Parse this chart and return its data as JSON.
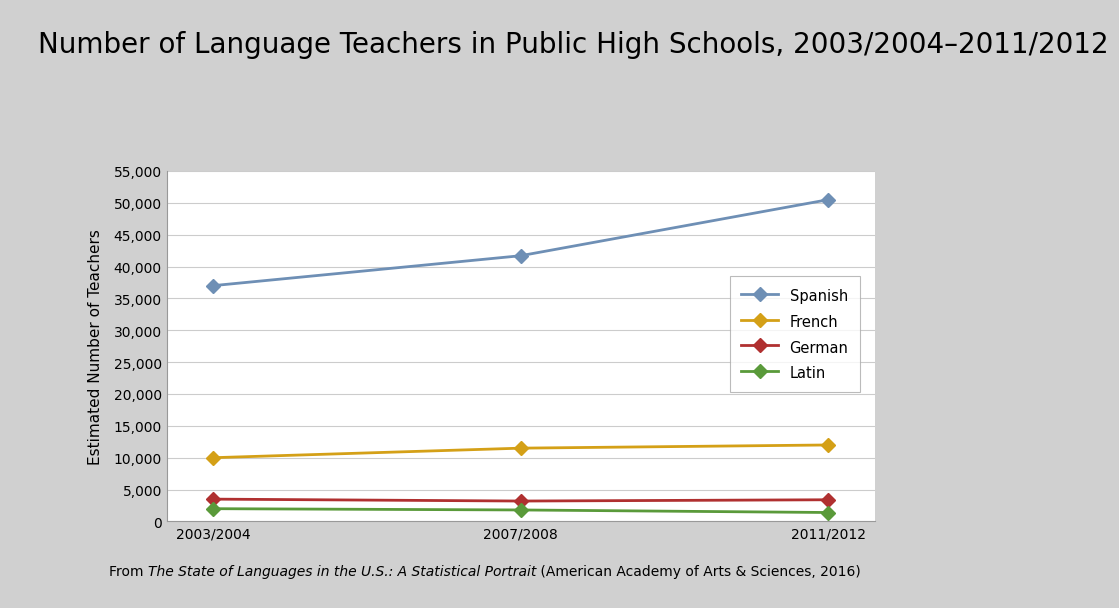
{
  "title": "Number of Language Teachers in Public High Schools, 2003/2004–2011/2012",
  "title_fontsize": 20,
  "ylabel": "Estimated Number of Teachers",
  "ylabel_fontsize": 11,
  "background_color": "#d0d0d0",
  "plot_bg_color": "#ffffff",
  "x_labels": [
    "2003/2004",
    "2007/2008",
    "2011/2012"
  ],
  "x_values": [
    0,
    1,
    2
  ],
  "series": [
    {
      "label": "Spanish",
      "color": "#6e8fb5",
      "marker": "D",
      "values": [
        37000,
        41700,
        50500
      ]
    },
    {
      "label": "French",
      "color": "#d4a017",
      "marker": "D",
      "values": [
        10000,
        11500,
        12000
      ]
    },
    {
      "label": "German",
      "color": "#b03030",
      "marker": "D",
      "values": [
        3500,
        3200,
        3400
      ]
    },
    {
      "label": "Latin",
      "color": "#5a9a3a",
      "marker": "D",
      "values": [
        2000,
        1800,
        1400
      ]
    }
  ],
  "ylim": [
    0,
    55000
  ],
  "yticks": [
    0,
    5000,
    10000,
    15000,
    20000,
    25000,
    30000,
    35000,
    40000,
    45000,
    50000,
    55000
  ],
  "footer_text_plain": "From ",
  "footer_text_italic": "The State of Languages in the U.S.: A Statistical Portrait",
  "footer_text_end": " (American Academy of Arts & Sciences, 2016)",
  "footer_fontsize": 10,
  "line_width": 2.0,
  "marker_size": 7
}
